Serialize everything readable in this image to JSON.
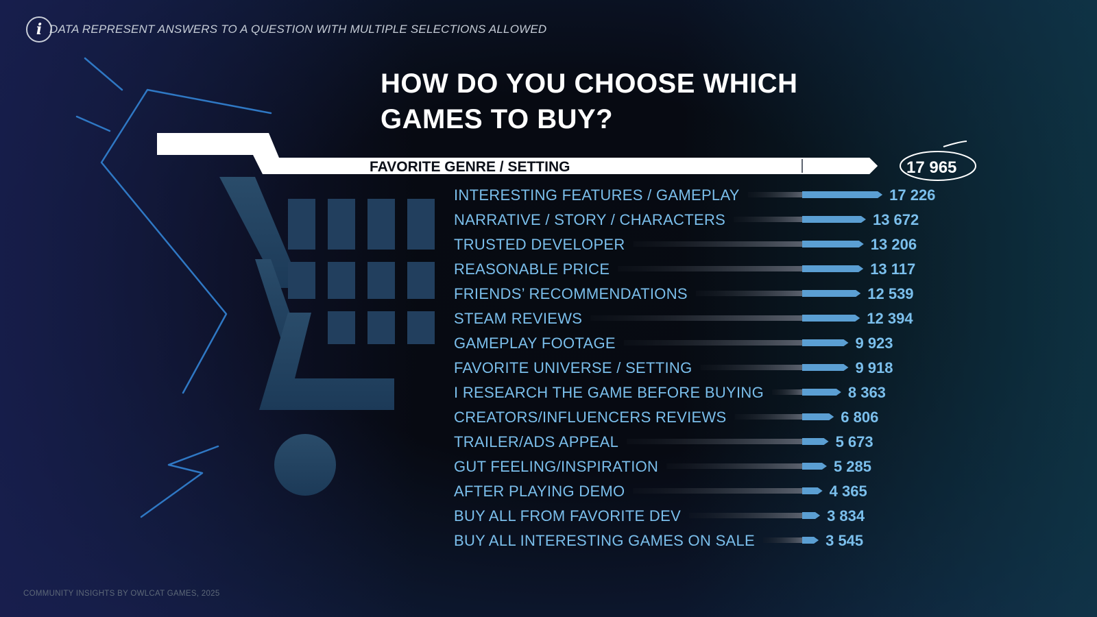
{
  "note": {
    "icon": "info-icon",
    "text": "DATA REPRESENT ANSWERS TO A QUESTION WITH MULTIPLE SELECTIONS ALLOWED"
  },
  "footer": "COMMUNITY INSIGHTS BY OWLCAT GAMES, 2025",
  "colors": {
    "bar": "#5b9fd3",
    "label": "#7bbfec",
    "top_bar": "#ffffff",
    "top_label": "#0b0f18"
  },
  "decor": {
    "background_art": "shopping-cart-icon"
  },
  "chart_data": {
    "type": "bar",
    "orientation": "horizontal",
    "title": "HOW DO YOU CHOOSE WHICH GAMES TO BUY?",
    "title_lines": [
      "HOW DO YOU CHOOSE WHICH",
      "GAMES TO BUY?"
    ],
    "categories": [
      "FAVORITE GENRE / SETTING",
      "INTERESTING FEATURES / GAMEPLAY",
      "NARRATIVE / STORY / CHARACTERS",
      "TRUSTED DEVELOPER",
      "REASONABLE PRICE",
      "FRIENDS’ RECOMMENDATIONS",
      "STEAM REVIEWS",
      "GAMEPLAY FOOTAGE",
      "FAVORITE UNIVERSE / SETTING",
      "I RESEARCH THE GAME BEFORE BUYING",
      "CREATORS/INFLUENCERS REVIEWS",
      "TRAILER/ADS APPEAL",
      "GUT FEELING/INSPIRATION",
      "AFTER PLAYING DEMO",
      "BUY ALL FROM FAVORITE DEV",
      "BUY ALL INTERESTING GAMES ON SALE"
    ],
    "values": [
      17965,
      17226,
      13672,
      13206,
      13117,
      12539,
      12394,
      9923,
      9918,
      8363,
      6806,
      5673,
      5285,
      4365,
      3834,
      3545
    ],
    "value_labels": [
      "17 965",
      "17 226",
      "13 672",
      "13 206",
      "13 117",
      "12 539",
      "12 394",
      "9 923",
      "9 918",
      "8 363",
      "6 806",
      "5 673",
      "5 285",
      "4 365",
      "3 834",
      "3 545"
    ],
    "highlight_first": true,
    "grid": false,
    "legend": "none"
  }
}
